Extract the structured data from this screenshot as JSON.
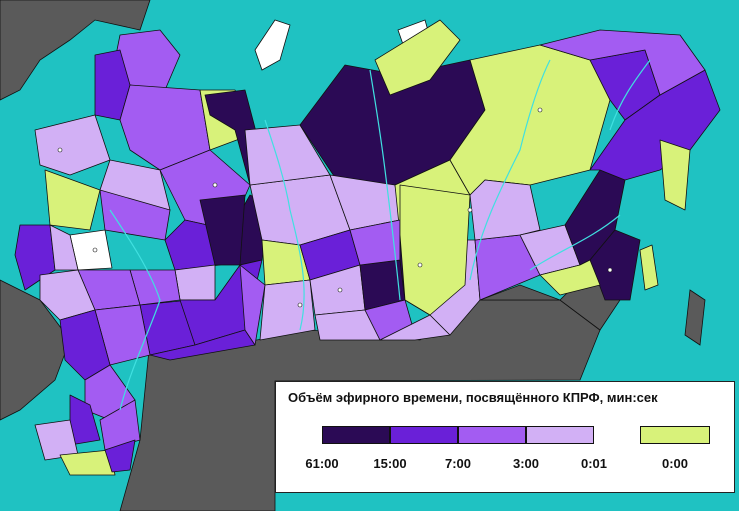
{
  "legend": {
    "title": "Объём эфирного времени, посвящённого КПРФ, мин:сек",
    "classes": [
      {
        "from": "61:00",
        "to": "15:00",
        "color": "#2b0a55"
      },
      {
        "from": "15:00",
        "to": "7:00",
        "color": "#6a20d8"
      },
      {
        "from": "7:00",
        "to": "3:00",
        "color": "#a35cf2"
      },
      {
        "from": "3:00",
        "to": "0:01",
        "color": "#d2b0f5"
      }
    ],
    "zero_class": {
      "label": "0:00",
      "color": "#d8f27a"
    },
    "ticks": [
      "61:00",
      "15:00",
      "7:00",
      "3:00",
      "0:01"
    ]
  },
  "colors": {
    "sea": "#1fc2c2",
    "foreign_land": "#5a5a5a",
    "outline": "#111111",
    "rivers": "#40e0e0",
    "ice": "#ffffff",
    "no_data": "#ffffff"
  }
}
